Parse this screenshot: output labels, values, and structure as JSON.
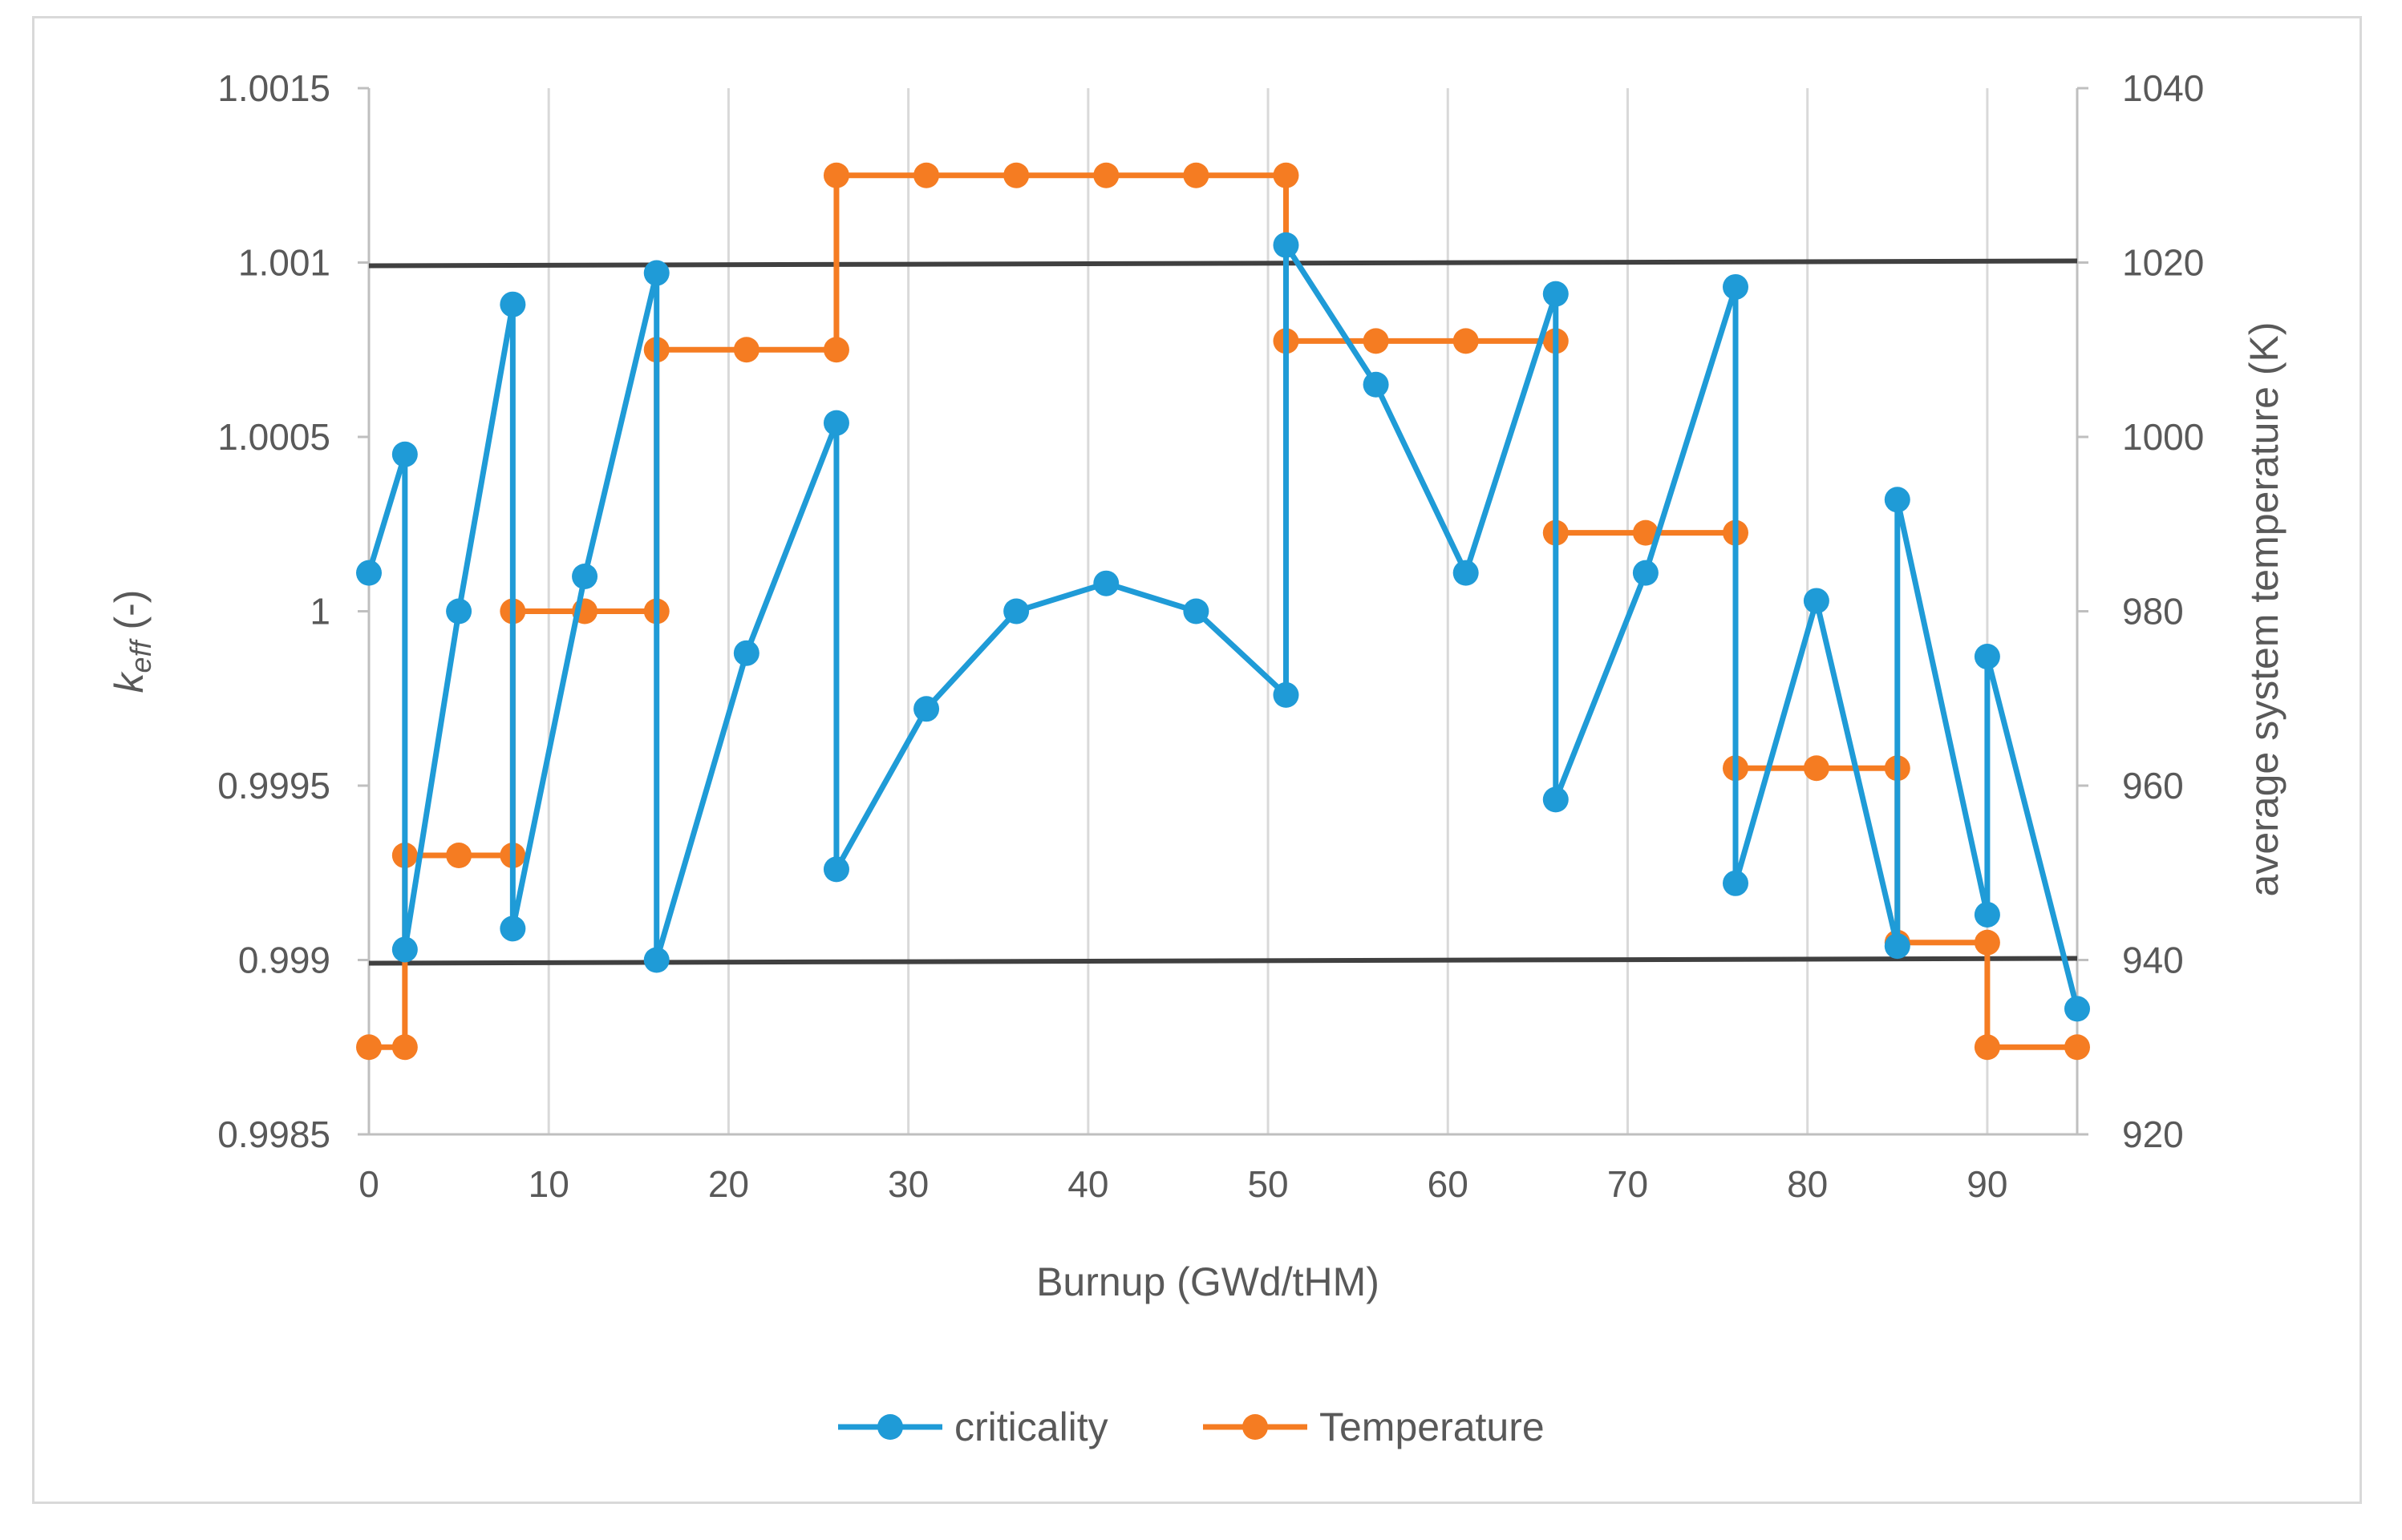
{
  "chart_data": {
    "type": "line",
    "xlabel": "Burnup (GWd/tHM)",
    "ylabel_left": {
      "main": "k",
      "subscript": "eff",
      "suffix": " (-)"
    },
    "ylabel_right": "average system temperature (K)",
    "xlim": [
      0,
      95
    ],
    "xticks": [
      0,
      10,
      20,
      30,
      40,
      50,
      60,
      70,
      80,
      90
    ],
    "ylim_left": [
      0.9985,
      1.0015
    ],
    "yticks_left": [
      "1.0015",
      "1.001",
      "1.0005",
      "1",
      "0.9995",
      "0.999",
      "0.9985"
    ],
    "yticks_left_values": [
      1.0015,
      1.001,
      1.0005,
      1.0,
      0.9995,
      0.999,
      0.9985
    ],
    "ylim_right": [
      920,
      1040
    ],
    "yticks_right": [
      "1040",
      "1020",
      "1000",
      "980",
      "960",
      "940",
      "920"
    ],
    "yticks_right_values": [
      1040,
      1020,
      1000,
      980,
      960,
      940,
      920
    ],
    "reference_lines_left": [
      1.001,
      0.999
    ],
    "grid": "vertical",
    "legend_position": "bottom",
    "colors": {
      "criticality": "#1f9bd7",
      "temperature": "#f57c22",
      "reference": "#404040",
      "grid": "#d9d9d9",
      "axis": "#bfbfbf"
    },
    "series": [
      {
        "name": "criticality",
        "axis": "left",
        "x": [
          0,
          2,
          2,
          5,
          8,
          8,
          12,
          16,
          16,
          21,
          26,
          26,
          31,
          36,
          41,
          46,
          51,
          51,
          56,
          61,
          66,
          66,
          71,
          76,
          76,
          80.5,
          85,
          85,
          90,
          90,
          95
        ],
        "values": [
          1.00011,
          1.00045,
          0.99903,
          1.0,
          1.00088,
          0.99909,
          1.0001,
          1.00097,
          0.999,
          0.99988,
          1.00054,
          0.99926,
          0.99972,
          1.0,
          1.00008,
          1.0,
          0.99976,
          1.00105,
          1.00065,
          1.00011,
          1.00091,
          0.99946,
          1.00011,
          1.00093,
          0.99922,
          1.00003,
          0.99904,
          1.00032,
          0.99913,
          0.99987,
          0.99886
        ]
      },
      {
        "name": "Temperature",
        "axis": "right",
        "x": [
          0,
          2,
          2,
          5,
          8,
          8,
          12,
          16,
          16,
          21,
          26,
          26,
          31,
          36,
          41,
          46,
          51,
          51,
          56,
          61,
          66,
          66,
          71,
          76,
          76,
          80.5,
          85,
          85,
          90,
          90,
          95
        ],
        "values": [
          930,
          930,
          952,
          952,
          952,
          980,
          980,
          980,
          1010,
          1010,
          1010,
          1030,
          1030,
          1030,
          1030,
          1030,
          1030,
          1011,
          1011,
          1011,
          1011,
          989,
          989,
          989,
          962,
          962,
          962,
          942,
          942,
          930,
          930
        ]
      }
    ]
  }
}
